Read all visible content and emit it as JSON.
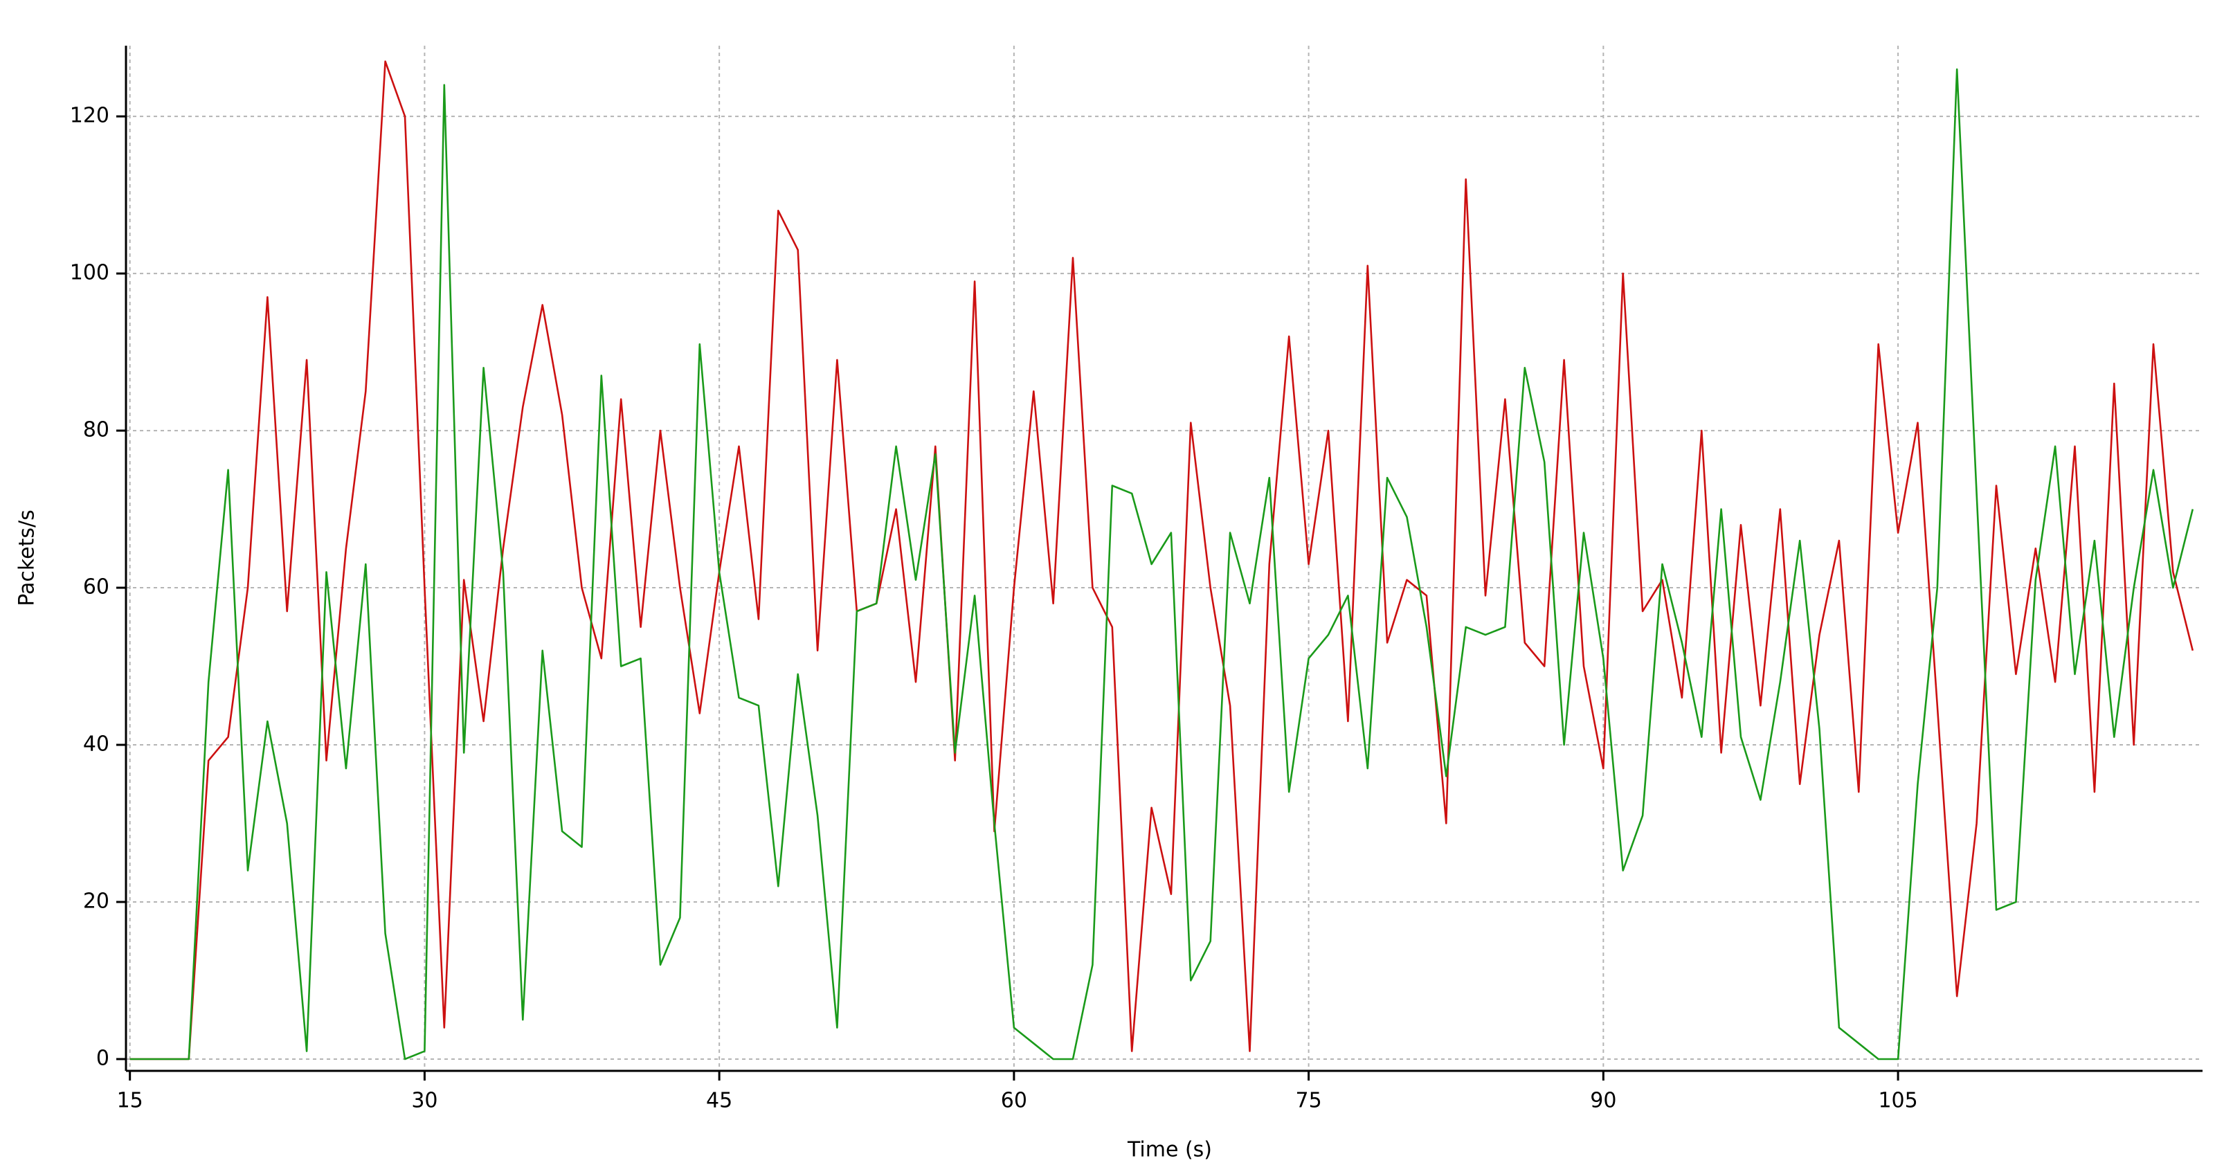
{
  "chart_data": {
    "type": "line",
    "xlabel": "Time (s)",
    "ylabel": "Packets/s",
    "x": [
      15,
      16,
      17,
      18,
      19,
      20,
      21,
      22,
      23,
      24,
      25,
      26,
      27,
      28,
      29,
      30,
      31,
      32,
      33,
      34,
      35,
      36,
      37,
      38,
      39,
      40,
      41,
      42,
      43,
      44,
      45,
      46,
      47,
      48,
      49,
      50,
      51,
      52,
      53,
      54,
      55,
      56,
      57,
      58,
      59,
      60,
      61,
      62,
      63,
      64,
      65,
      66,
      67,
      68,
      69,
      70,
      71,
      72,
      73,
      74,
      75,
      76,
      77,
      78,
      79,
      80,
      81,
      82,
      83,
      84,
      85,
      86,
      87,
      88,
      89,
      90,
      91,
      92,
      93,
      94,
      95,
      96,
      97,
      98,
      99,
      100,
      101,
      102,
      103,
      104,
      105,
      106,
      107,
      108,
      109,
      110,
      111,
      112,
      113,
      114,
      115,
      116,
      117,
      118,
      119,
      120
    ],
    "series": [
      {
        "color": "#cc1010",
        "values": [
          0,
          0,
          0,
          0,
          38,
          41,
          60,
          97,
          57,
          89,
          38,
          65,
          85,
          127,
          120,
          60,
          4,
          61,
          43,
          65,
          83,
          96,
          82,
          60,
          51,
          84,
          55,
          80,
          60,
          44,
          62,
          78,
          56,
          108,
          103,
          52,
          89,
          57,
          58,
          70,
          48,
          78,
          38,
          99,
          29,
          60,
          85,
          58,
          102,
          60,
          55,
          1,
          32,
          21,
          81,
          60,
          45,
          1,
          63,
          92,
          63,
          80,
          43,
          101,
          53,
          61,
          59,
          30,
          112,
          59,
          84,
          53,
          50,
          89,
          50,
          37,
          100,
          57,
          61,
          46,
          80,
          39,
          68,
          45,
          70,
          35,
          54,
          66,
          34,
          91,
          67,
          81,
          45,
          8,
          30,
          73,
          49,
          65,
          48,
          78,
          34,
          86,
          40,
          91,
          62,
          52
        ]
      },
      {
        "color": "#1a9a1a",
        "values": [
          0,
          0,
          0,
          0,
          48,
          75,
          24,
          43,
          30,
          1,
          62,
          37,
          63,
          16,
          0,
          1,
          124,
          39,
          88,
          62,
          5,
          52,
          29,
          27,
          87,
          50,
          51,
          12,
          18,
          91,
          62,
          46,
          45,
          22,
          49,
          31,
          4,
          57,
          58,
          78,
          61,
          77,
          39,
          59,
          30,
          4,
          2,
          0,
          0,
          12,
          73,
          72,
          63,
          67,
          10,
          15,
          67,
          58,
          74,
          34,
          51,
          54,
          59,
          37,
          74,
          69,
          55,
          36,
          55,
          54,
          55,
          88,
          76,
          40,
          67,
          51,
          24,
          31,
          63,
          53,
          41,
          70,
          41,
          33,
          48,
          66,
          42,
          4,
          2,
          0,
          0,
          35,
          60,
          126,
          72,
          19,
          20,
          61,
          78,
          49,
          66,
          41,
          60,
          75,
          60,
          70
        ]
      }
    ],
    "xlim": [
      14.8,
      120.5
    ],
    "xticks": [
      15,
      30,
      45,
      60,
      75,
      90,
      105
    ],
    "ylim": [
      -1.5,
      129
    ],
    "yticks": [
      0,
      20,
      40,
      60,
      80,
      100,
      120
    ],
    "grid": true
  }
}
